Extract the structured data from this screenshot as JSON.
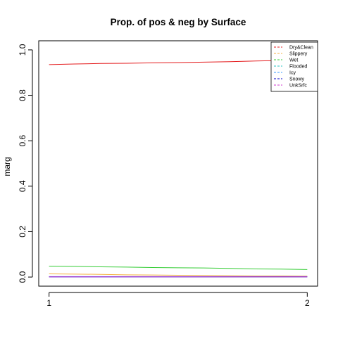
{
  "chart_data": {
    "type": "line",
    "title": "Prop. of pos & neg by Surface",
    "xlabel": "",
    "ylabel": "marg",
    "x": [
      1,
      1.1,
      1.2,
      1.3,
      1.4,
      1.5,
      1.6,
      1.7,
      1.8,
      1.9,
      2
    ],
    "xticks": [
      "1",
      "2"
    ],
    "xlim": [
      0.96,
      2.04
    ],
    "ylim": [
      -0.04,
      1.04
    ],
    "yticks": [
      "0.0",
      "0.2",
      "0.4",
      "0.6",
      "0.8",
      "1.0"
    ],
    "grid": false,
    "legend_position": "top-right",
    "series": [
      {
        "name": "Dry&Clean",
        "color": "#E41A1C",
        "values": [
          0.935,
          0.938,
          0.94,
          0.941,
          0.943,
          0.944,
          0.946,
          0.948,
          0.951,
          0.953,
          0.955
        ]
      },
      {
        "name": "Slippery",
        "color": "#F5B041",
        "values": [
          0.014,
          0.013,
          0.012,
          0.01,
          0.009,
          0.008,
          0.007,
          0.006,
          0.005,
          0.005,
          0.004
        ]
      },
      {
        "name": "Wet",
        "color": "#33CC33",
        "values": [
          0.048,
          0.047,
          0.045,
          0.044,
          0.042,
          0.041,
          0.04,
          0.038,
          0.036,
          0.035,
          0.033
        ]
      },
      {
        "name": "Flooded",
        "color": "#20C0C0",
        "values": [
          0.001,
          0.001,
          0.001,
          0.001,
          0.001,
          0.001,
          0.001,
          0.001,
          0.001,
          0.001,
          0.001
        ]
      },
      {
        "name": "Icy",
        "color": "#3399FF",
        "values": [
          0.002,
          0.002,
          0.002,
          0.002,
          0.002,
          0.002,
          0.002,
          0.002,
          0.002,
          0.002,
          0.002
        ]
      },
      {
        "name": "Snowy",
        "color": "#0000CC",
        "values": [
          0.001,
          0.001,
          0.001,
          0.001,
          0.001,
          0.001,
          0.001,
          0.001,
          0.001,
          0.001,
          0.001
        ]
      },
      {
        "name": "UnkSrfc",
        "color": "#CC33CC",
        "values": [
          0.001,
          0.001,
          0.001,
          0.001,
          0.001,
          0.001,
          0.001,
          0.001,
          0.001,
          0.001,
          0.001
        ]
      }
    ]
  }
}
